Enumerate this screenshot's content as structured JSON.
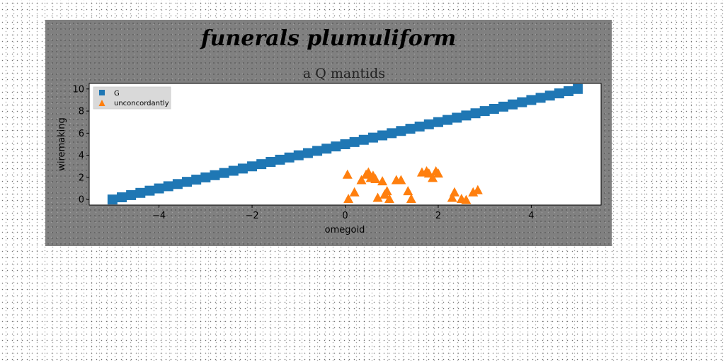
{
  "chart_data": {
    "type": "scatter",
    "suptitle": "funerals plumuliform",
    "title": "a Q mantids",
    "xlabel": "omegoid",
    "ylabel": "wiremaking",
    "xlim": [
      -5.5,
      5.5
    ],
    "ylim": [
      -0.5,
      10.5
    ],
    "xticks": [
      -4,
      -2,
      0,
      2,
      4
    ],
    "xtick_labels": [
      "−4",
      "−2",
      "0",
      "2",
      "4"
    ],
    "yticks": [
      0,
      2,
      4,
      6,
      8,
      10
    ],
    "ytick_labels": [
      "0",
      "2",
      "4",
      "6",
      "8",
      "10"
    ],
    "grid": false,
    "legend_position": "top-left",
    "series": [
      {
        "name": "G",
        "marker": "square",
        "color": "#1f77b4",
        "x": [
          -5.0,
          -4.8,
          -4.6,
          -4.4,
          -4.2,
          -4.0,
          -3.8,
          -3.6,
          -3.4,
          -3.2,
          -3.0,
          -2.8,
          -2.6,
          -2.4,
          -2.2,
          -2.0,
          -1.8,
          -1.6,
          -1.4,
          -1.2,
          -1.0,
          -0.8,
          -0.6,
          -0.4,
          -0.2,
          0.0,
          0.2,
          0.4,
          0.6,
          0.8,
          1.0,
          1.2,
          1.4,
          1.6,
          1.8,
          2.0,
          2.2,
          2.4,
          2.6,
          2.8,
          3.0,
          3.2,
          3.4,
          3.6,
          3.8,
          4.0,
          4.2,
          4.4,
          4.6,
          4.8,
          5.0
        ],
        "y": [
          0.0,
          0.2,
          0.4,
          0.6,
          0.8,
          1.0,
          1.2,
          1.4,
          1.6,
          1.8,
          2.0,
          2.2,
          2.4,
          2.6,
          2.8,
          3.0,
          3.2,
          3.4,
          3.6,
          3.8,
          4.0,
          4.2,
          4.4,
          4.6,
          4.8,
          5.0,
          5.2,
          5.4,
          5.6,
          5.8,
          6.0,
          6.2,
          6.4,
          6.6,
          6.8,
          7.0,
          7.2,
          7.4,
          7.6,
          7.8,
          8.0,
          8.2,
          8.4,
          8.6,
          8.8,
          9.0,
          9.2,
          9.4,
          9.6,
          9.8,
          10.0
        ]
      },
      {
        "name": "unconcordantly",
        "marker": "triangle",
        "color": "#ff7f0e",
        "x": [
          0.05,
          0.07,
          0.2,
          0.35,
          0.45,
          0.5,
          0.55,
          0.6,
          0.65,
          0.7,
          0.8,
          0.85,
          0.9,
          0.95,
          1.1,
          1.2,
          1.35,
          1.42,
          1.65,
          1.75,
          1.8,
          1.88,
          1.95,
          2.0,
          2.3,
          2.35,
          2.5,
          2.6,
          2.75,
          2.85
        ],
        "y": [
          2.3,
          0.1,
          0.7,
          1.8,
          2.3,
          2.5,
          2.0,
          2.2,
          1.9,
          0.2,
          1.7,
          0.5,
          0.8,
          0.1,
          1.8,
          1.8,
          0.8,
          0.1,
          2.5,
          2.6,
          2.4,
          2.0,
          2.6,
          2.4,
          0.2,
          0.7,
          0.1,
          0.0,
          0.7,
          0.9
        ]
      }
    ]
  }
}
